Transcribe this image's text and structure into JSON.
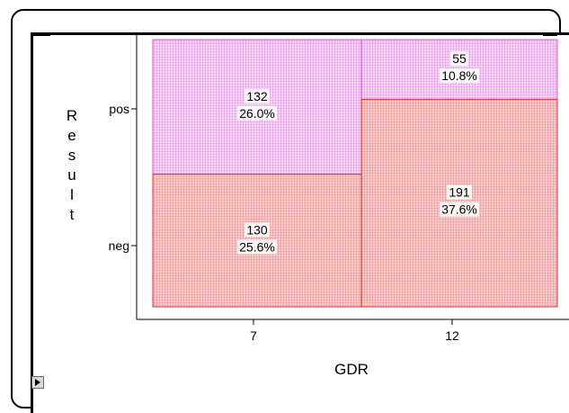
{
  "chart_data": {
    "type": "mosaic",
    "title": "",
    "xlabel": "GDR",
    "ylabel": "Result",
    "x_categories": [
      "7",
      "12"
    ],
    "y_categories": [
      "neg",
      "pos"
    ],
    "cells": [
      {
        "x": "7",
        "y": "pos",
        "count": "132",
        "percent": "26.0%",
        "count_value": 132
      },
      {
        "x": "7",
        "y": "neg",
        "count": "130",
        "percent": "25.6%",
        "count_value": 130
      },
      {
        "x": "12",
        "y": "pos",
        "count": "55",
        "percent": "10.8%",
        "count_value": 55
      },
      {
        "x": "12",
        "y": "neg",
        "count": "191",
        "percent": "37.6%",
        "count_value": 191
      }
    ],
    "colors": {
      "pos": "#f6c8f6",
      "neg": "#f5b8b8",
      "pos_border": "#dd55dd",
      "neg_border": "#dd3333"
    }
  }
}
